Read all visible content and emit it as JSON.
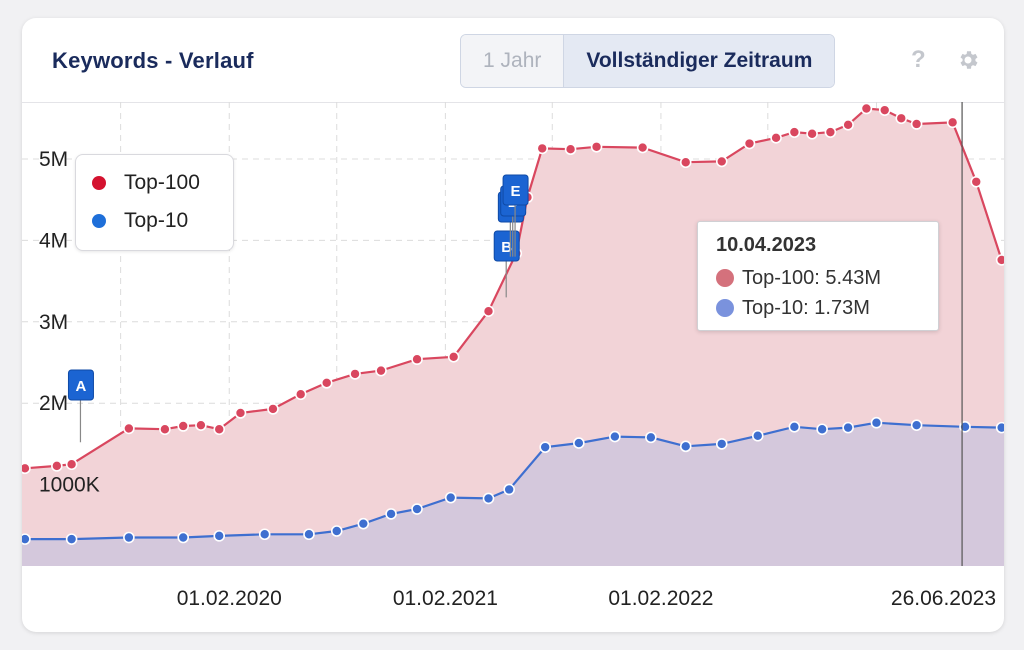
{
  "header": {
    "title": "Keywords - Verlauf",
    "range_options": [
      "1 Jahr",
      "Vollständiger Zeitraum"
    ],
    "active_range": "Vollständiger Zeitraum",
    "help_label": "?"
  },
  "legend": [
    {
      "label": "Top-100",
      "color": "#d4122f"
    },
    {
      "label": "Top-10",
      "color": "#1e6fd9"
    }
  ],
  "tooltip": {
    "date": "10.04.2023",
    "rows": [
      {
        "label": "Top-100: 5.43M",
        "color": "#d4717c"
      },
      {
        "label": "Top-10: 1.73M",
        "color": "#7a92dd"
      }
    ]
  },
  "chart_data": {
    "type": "area",
    "y_ticks": [
      {
        "value": 1000000,
        "label": "1000K"
      },
      {
        "value": 2000000,
        "label": "2M"
      },
      {
        "value": 3000000,
        "label": "3M"
      },
      {
        "value": 4000000,
        "label": "4M"
      },
      {
        "value": 5000000,
        "label": "5M"
      }
    ],
    "x_ticks": [
      {
        "value": "2020-02-01",
        "label": "01.02.2020"
      },
      {
        "value": "2021-02-01",
        "label": "01.02.2021"
      },
      {
        "value": "2022-02-01",
        "label": "01.02.2022"
      },
      {
        "value": "2023-06-26",
        "label": "26.06.2023"
      }
    ],
    "x_grid": [
      "2019-08-01",
      "2020-02-01",
      "2020-08-01",
      "2021-02-01",
      "2021-08-01",
      "2022-02-01",
      "2022-08-01",
      "2023-02-01",
      "2023-06-26"
    ],
    "ylim": [
      0,
      5700000
    ],
    "xlim": [
      "2019-02-15",
      "2023-09-05"
    ],
    "grid": true,
    "crosshair": "2023-06-26",
    "series": [
      {
        "name": "Top-100",
        "color": "#d9475f",
        "fill": "#f2d3d7",
        "points": [
          [
            "2019-02-20",
            1200000
          ],
          [
            "2019-04-15",
            1230000
          ],
          [
            "2019-05-10",
            1250000
          ],
          [
            "2019-08-15",
            1690000
          ],
          [
            "2019-10-15",
            1680000
          ],
          [
            "2019-11-15",
            1720000
          ],
          [
            "2019-12-15",
            1730000
          ],
          [
            "2020-01-15",
            1680000
          ],
          [
            "2020-02-20",
            1880000
          ],
          [
            "2020-04-15",
            1930000
          ],
          [
            "2020-06-01",
            2110000
          ],
          [
            "2020-07-15",
            2250000
          ],
          [
            "2020-09-01",
            2360000
          ],
          [
            "2020-10-15",
            2400000
          ],
          [
            "2020-12-15",
            2540000
          ],
          [
            "2021-02-15",
            2570000
          ],
          [
            "2021-04-15",
            3130000
          ],
          [
            "2021-06-01",
            3840000
          ],
          [
            "2021-06-20",
            4530000
          ],
          [
            "2021-07-15",
            5130000
          ],
          [
            "2021-09-01",
            5120000
          ],
          [
            "2021-10-15",
            5150000
          ],
          [
            "2022-01-01",
            5140000
          ],
          [
            "2022-03-15",
            4960000
          ],
          [
            "2022-05-15",
            4970000
          ],
          [
            "2022-07-01",
            5190000
          ],
          [
            "2022-08-15",
            5260000
          ],
          [
            "2022-09-15",
            5330000
          ],
          [
            "2022-10-15",
            5310000
          ],
          [
            "2022-11-15",
            5330000
          ],
          [
            "2022-12-15",
            5420000
          ],
          [
            "2023-01-15",
            5620000
          ],
          [
            "2023-02-15",
            5600000
          ],
          [
            "2023-03-15",
            5500000
          ],
          [
            "2023-04-10",
            5430000
          ],
          [
            "2023-06-10",
            5450000
          ],
          [
            "2023-07-20",
            4720000
          ],
          [
            "2023-09-01",
            3760000
          ]
        ]
      },
      {
        "name": "Top-10",
        "color": "#3e6fd0",
        "fill": "#c9c4dd",
        "points": [
          [
            "2019-02-20",
            330000
          ],
          [
            "2019-05-10",
            330000
          ],
          [
            "2019-08-15",
            350000
          ],
          [
            "2019-11-15",
            350000
          ],
          [
            "2020-01-15",
            370000
          ],
          [
            "2020-04-01",
            390000
          ],
          [
            "2020-06-15",
            390000
          ],
          [
            "2020-08-01",
            430000
          ],
          [
            "2020-09-15",
            520000
          ],
          [
            "2020-11-01",
            640000
          ],
          [
            "2020-12-15",
            700000
          ],
          [
            "2021-02-10",
            840000
          ],
          [
            "2021-04-15",
            830000
          ],
          [
            "2021-05-20",
            940000
          ],
          [
            "2021-07-20",
            1460000
          ],
          [
            "2021-09-15",
            1510000
          ],
          [
            "2021-11-15",
            1590000
          ],
          [
            "2022-01-15",
            1580000
          ],
          [
            "2022-03-15",
            1470000
          ],
          [
            "2022-05-15",
            1500000
          ],
          [
            "2022-07-15",
            1600000
          ],
          [
            "2022-09-15",
            1710000
          ],
          [
            "2022-11-01",
            1680000
          ],
          [
            "2022-12-15",
            1700000
          ],
          [
            "2023-02-01",
            1760000
          ],
          [
            "2023-04-10",
            1730000
          ],
          [
            "2023-07-01",
            1710000
          ],
          [
            "2023-09-01",
            1700000
          ]
        ]
      }
    ],
    "event_markers": [
      {
        "label": "A",
        "date": "2019-05-25",
        "value": 1520000
      },
      {
        "label": "B",
        "date": "2021-05-15",
        "value": 3300000
      },
      {
        "label": "C",
        "date": "2021-05-22",
        "value": 3800000
      },
      {
        "label": "D",
        "date": "2021-05-26",
        "value": 3800000
      },
      {
        "label": "E",
        "date": "2021-05-30",
        "value": 3800000
      }
    ]
  }
}
